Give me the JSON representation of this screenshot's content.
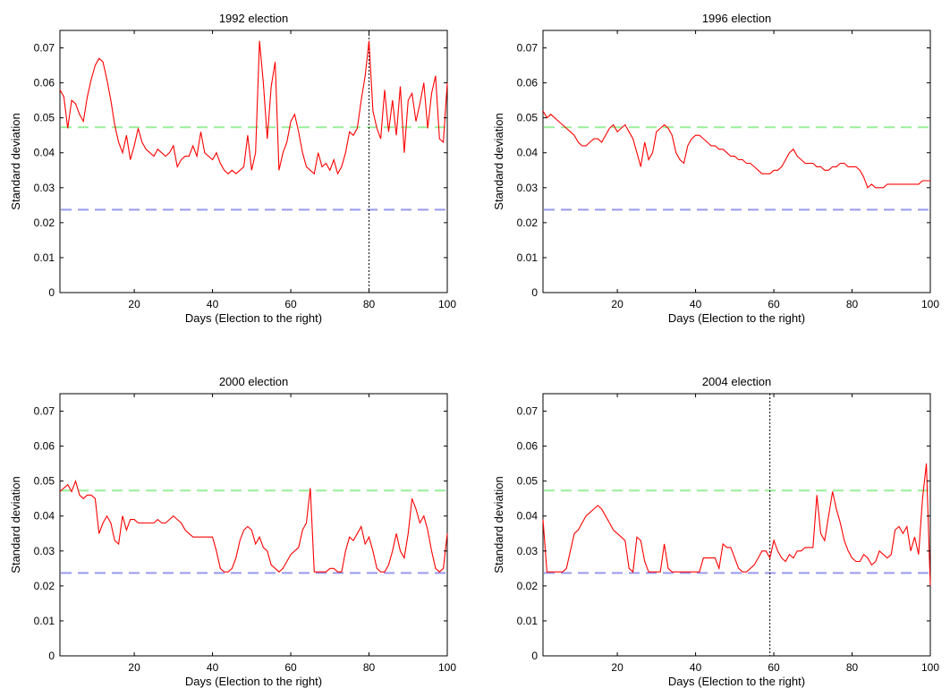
{
  "figure": {
    "background": "#ffffff",
    "colors": {
      "series": "#ff0000",
      "upper_ref": "#99ee99",
      "lower_ref": "#9999ee",
      "marker": "#000000"
    }
  },
  "chart_data": [
    {
      "type": "line",
      "title": "1992 election",
      "xlabel": "Days (Election to the right)",
      "ylabel": "Standard deviation",
      "xlim": [
        1,
        100
      ],
      "ylim": [
        0,
        0.075
      ],
      "xticks": [
        20,
        40,
        60,
        80,
        100
      ],
      "yticks": [
        0,
        0.01,
        0.02,
        0.03,
        0.04,
        0.05,
        0.06,
        0.07
      ],
      "grid": false,
      "reference_lines": [
        {
          "y": 0.0473,
          "color": "#99ee99",
          "style": "dashed"
        },
        {
          "y": 0.0237,
          "color": "#9999ee",
          "style": "dashed"
        }
      ],
      "vline_x": 80,
      "x": [
        1,
        2,
        3,
        4,
        5,
        6,
        7,
        8,
        9,
        10,
        11,
        12,
        13,
        14,
        15,
        16,
        17,
        18,
        19,
        20,
        21,
        22,
        23,
        24,
        25,
        26,
        27,
        28,
        29,
        30,
        31,
        32,
        33,
        34,
        35,
        36,
        37,
        38,
        39,
        40,
        41,
        42,
        43,
        44,
        45,
        46,
        47,
        48,
        49,
        50,
        51,
        52,
        53,
        54,
        55,
        56,
        57,
        58,
        59,
        60,
        61,
        62,
        63,
        64,
        65,
        66,
        67,
        68,
        69,
        70,
        71,
        72,
        73,
        74,
        75,
        76,
        77,
        78,
        79,
        80,
        81,
        82,
        83,
        84,
        85,
        86,
        87,
        88,
        89,
        90,
        91,
        92,
        93,
        94,
        95,
        96,
        97,
        98,
        99,
        100
      ],
      "series": [
        {
          "color": "#ff0000",
          "values": [
            0.058,
            0.056,
            0.047,
            0.055,
            0.054,
            0.051,
            0.049,
            0.056,
            0.061,
            0.065,
            0.067,
            0.066,
            0.061,
            0.055,
            0.048,
            0.043,
            0.04,
            0.045,
            0.038,
            0.042,
            0.047,
            0.043,
            0.041,
            0.04,
            0.039,
            0.041,
            0.04,
            0.039,
            0.04,
            0.042,
            0.036,
            0.038,
            0.039,
            0.039,
            0.042,
            0.039,
            0.046,
            0.04,
            0.039,
            0.038,
            0.04,
            0.037,
            0.035,
            0.034,
            0.035,
            0.034,
            0.035,
            0.036,
            0.045,
            0.035,
            0.04,
            0.072,
            0.06,
            0.044,
            0.059,
            0.066,
            0.035,
            0.04,
            0.043,
            0.049,
            0.051,
            0.046,
            0.04,
            0.036,
            0.035,
            0.034,
            0.04,
            0.036,
            0.037,
            0.035,
            0.038,
            0.034,
            0.036,
            0.04,
            0.046,
            0.045,
            0.047,
            0.055,
            0.062,
            0.072,
            0.052,
            0.047,
            0.044,
            0.058,
            0.046,
            0.055,
            0.045,
            0.059,
            0.04,
            0.055,
            0.057,
            0.049,
            0.054,
            0.06,
            0.047,
            0.057,
            0.062,
            0.044,
            0.043,
            0.06
          ]
        }
      ]
    },
    {
      "type": "line",
      "title": "1996 election",
      "xlabel": "Days (Election to the right)",
      "ylabel": "Standard deviation",
      "xlim": [
        1,
        100
      ],
      "ylim": [
        0,
        0.075
      ],
      "xticks": [
        20,
        40,
        60,
        80,
        100
      ],
      "yticks": [
        0,
        0.01,
        0.02,
        0.03,
        0.04,
        0.05,
        0.06,
        0.07
      ],
      "grid": false,
      "reference_lines": [
        {
          "y": 0.0473,
          "color": "#99ee99",
          "style": "dashed"
        },
        {
          "y": 0.0237,
          "color": "#9999ee",
          "style": "dashed"
        }
      ],
      "x": [
        1,
        2,
        3,
        4,
        5,
        6,
        7,
        8,
        9,
        10,
        11,
        12,
        13,
        14,
        15,
        16,
        17,
        18,
        19,
        20,
        21,
        22,
        23,
        24,
        25,
        26,
        27,
        28,
        29,
        30,
        31,
        32,
        33,
        34,
        35,
        36,
        37,
        38,
        39,
        40,
        41,
        42,
        43,
        44,
        45,
        46,
        47,
        48,
        49,
        50,
        51,
        52,
        53,
        54,
        55,
        56,
        57,
        58,
        59,
        60,
        61,
        62,
        63,
        64,
        65,
        66,
        67,
        68,
        69,
        70,
        71,
        72,
        73,
        74,
        75,
        76,
        77,
        78,
        79,
        80,
        81,
        82,
        83,
        84,
        85,
        86,
        87,
        88,
        89,
        90,
        91,
        92,
        93,
        94,
        95,
        96,
        97,
        98,
        99,
        100
      ],
      "series": [
        {
          "color": "#ff0000",
          "values": [
            0.052,
            0.05,
            0.051,
            0.05,
            0.049,
            0.048,
            0.047,
            0.046,
            0.045,
            0.043,
            0.042,
            0.042,
            0.043,
            0.044,
            0.044,
            0.043,
            0.045,
            0.047,
            0.048,
            0.046,
            0.047,
            0.048,
            0.046,
            0.044,
            0.04,
            0.036,
            0.043,
            0.038,
            0.04,
            0.046,
            0.047,
            0.048,
            0.047,
            0.045,
            0.04,
            0.038,
            0.037,
            0.042,
            0.044,
            0.045,
            0.045,
            0.044,
            0.043,
            0.042,
            0.042,
            0.041,
            0.041,
            0.04,
            0.039,
            0.039,
            0.038,
            0.038,
            0.037,
            0.037,
            0.036,
            0.035,
            0.034,
            0.034,
            0.034,
            0.035,
            0.035,
            0.036,
            0.038,
            0.04,
            0.041,
            0.039,
            0.038,
            0.037,
            0.037,
            0.037,
            0.036,
            0.036,
            0.035,
            0.035,
            0.036,
            0.036,
            0.037,
            0.037,
            0.036,
            0.036,
            0.036,
            0.035,
            0.033,
            0.03,
            0.031,
            0.03,
            0.03,
            0.03,
            0.031,
            0.031,
            0.031,
            0.031,
            0.031,
            0.031,
            0.031,
            0.031,
            0.031,
            0.032,
            0.032,
            0.032
          ]
        }
      ]
    },
    {
      "type": "line",
      "title": "2000 election",
      "xlabel": "Days (Election to the right)",
      "ylabel": "Standard deviation",
      "xlim": [
        1,
        100
      ],
      "ylim": [
        0,
        0.075
      ],
      "xticks": [
        20,
        40,
        60,
        80,
        100
      ],
      "yticks": [
        0,
        0.01,
        0.02,
        0.03,
        0.04,
        0.05,
        0.06,
        0.07
      ],
      "grid": false,
      "reference_lines": [
        {
          "y": 0.0473,
          "color": "#99ee99",
          "style": "dashed"
        },
        {
          "y": 0.0237,
          "color": "#9999ee",
          "style": "dashed"
        }
      ],
      "x": [
        1,
        2,
        3,
        4,
        5,
        6,
        7,
        8,
        9,
        10,
        11,
        12,
        13,
        14,
        15,
        16,
        17,
        18,
        19,
        20,
        21,
        22,
        23,
        24,
        25,
        26,
        27,
        28,
        29,
        30,
        31,
        32,
        33,
        34,
        35,
        36,
        37,
        38,
        39,
        40,
        41,
        42,
        43,
        44,
        45,
        46,
        47,
        48,
        49,
        50,
        51,
        52,
        53,
        54,
        55,
        56,
        57,
        58,
        59,
        60,
        61,
        62,
        63,
        64,
        65,
        66,
        67,
        68,
        69,
        70,
        71,
        72,
        73,
        74,
        75,
        76,
        77,
        78,
        79,
        80,
        81,
        82,
        83,
        84,
        85,
        86,
        87,
        88,
        89,
        90,
        91,
        92,
        93,
        94,
        95,
        96,
        97,
        98,
        99,
        100
      ],
      "series": [
        {
          "color": "#ff0000",
          "values": [
            0.047,
            0.048,
            0.049,
            0.047,
            0.05,
            0.046,
            0.045,
            0.046,
            0.046,
            0.045,
            0.035,
            0.038,
            0.04,
            0.038,
            0.033,
            0.032,
            0.04,
            0.036,
            0.039,
            0.039,
            0.038,
            0.038,
            0.038,
            0.038,
            0.038,
            0.039,
            0.038,
            0.038,
            0.039,
            0.04,
            0.039,
            0.038,
            0.036,
            0.035,
            0.034,
            0.034,
            0.034,
            0.034,
            0.034,
            0.034,
            0.03,
            0.025,
            0.024,
            0.024,
            0.025,
            0.028,
            0.033,
            0.036,
            0.037,
            0.036,
            0.032,
            0.034,
            0.031,
            0.03,
            0.026,
            0.025,
            0.024,
            0.025,
            0.027,
            0.029,
            0.03,
            0.031,
            0.036,
            0.038,
            0.048,
            0.024,
            0.024,
            0.024,
            0.024,
            0.025,
            0.025,
            0.024,
            0.024,
            0.03,
            0.034,
            0.033,
            0.035,
            0.037,
            0.032,
            0.034,
            0.03,
            0.025,
            0.024,
            0.024,
            0.026,
            0.03,
            0.035,
            0.03,
            0.028,
            0.035,
            0.045,
            0.042,
            0.038,
            0.04,
            0.036,
            0.03,
            0.025,
            0.024,
            0.025,
            0.035
          ]
        }
      ]
    },
    {
      "type": "line",
      "title": "2004 election",
      "xlabel": "Days (Election to the right)",
      "ylabel": "Standard deviation",
      "xlim": [
        1,
        100
      ],
      "ylim": [
        0,
        0.075
      ],
      "xticks": [
        20,
        40,
        60,
        80,
        100
      ],
      "yticks": [
        0,
        0.01,
        0.02,
        0.03,
        0.04,
        0.05,
        0.06,
        0.07
      ],
      "grid": false,
      "reference_lines": [
        {
          "y": 0.0473,
          "color": "#99ee99",
          "style": "dashed"
        },
        {
          "y": 0.0237,
          "color": "#9999ee",
          "style": "dashed"
        }
      ],
      "vline_x": 59,
      "x": [
        1,
        2,
        3,
        4,
        5,
        6,
        7,
        8,
        9,
        10,
        11,
        12,
        13,
        14,
        15,
        16,
        17,
        18,
        19,
        20,
        21,
        22,
        23,
        24,
        25,
        26,
        27,
        28,
        29,
        30,
        31,
        32,
        33,
        34,
        35,
        36,
        37,
        38,
        39,
        40,
        41,
        42,
        43,
        44,
        45,
        46,
        47,
        48,
        49,
        50,
        51,
        52,
        53,
        54,
        55,
        56,
        57,
        58,
        59,
        60,
        61,
        62,
        63,
        64,
        65,
        66,
        67,
        68,
        69,
        70,
        71,
        72,
        73,
        74,
        75,
        76,
        77,
        78,
        79,
        80,
        81,
        82,
        83,
        84,
        85,
        86,
        87,
        88,
        89,
        90,
        91,
        92,
        93,
        94,
        95,
        96,
        97,
        98,
        99,
        100
      ],
      "series": [
        {
          "color": "#ff0000",
          "values": [
            0.039,
            0.024,
            0.024,
            0.024,
            0.024,
            0.024,
            0.025,
            0.03,
            0.035,
            0.036,
            0.038,
            0.04,
            0.041,
            0.042,
            0.043,
            0.042,
            0.04,
            0.038,
            0.036,
            0.035,
            0.034,
            0.033,
            0.025,
            0.024,
            0.034,
            0.033,
            0.027,
            0.024,
            0.024,
            0.024,
            0.024,
            0.032,
            0.025,
            0.024,
            0.024,
            0.024,
            0.024,
            0.024,
            0.024,
            0.024,
            0.024,
            0.028,
            0.028,
            0.028,
            0.028,
            0.025,
            0.032,
            0.031,
            0.031,
            0.028,
            0.025,
            0.024,
            0.024,
            0.025,
            0.026,
            0.028,
            0.03,
            0.03,
            0.028,
            0.033,
            0.03,
            0.028,
            0.027,
            0.029,
            0.028,
            0.03,
            0.03,
            0.031,
            0.031,
            0.031,
            0.046,
            0.035,
            0.033,
            0.04,
            0.047,
            0.042,
            0.038,
            0.033,
            0.03,
            0.028,
            0.027,
            0.027,
            0.029,
            0.028,
            0.026,
            0.027,
            0.03,
            0.029,
            0.028,
            0.029,
            0.036,
            0.037,
            0.035,
            0.037,
            0.03,
            0.034,
            0.029,
            0.045,
            0.055,
            0.02
          ]
        }
      ]
    }
  ]
}
